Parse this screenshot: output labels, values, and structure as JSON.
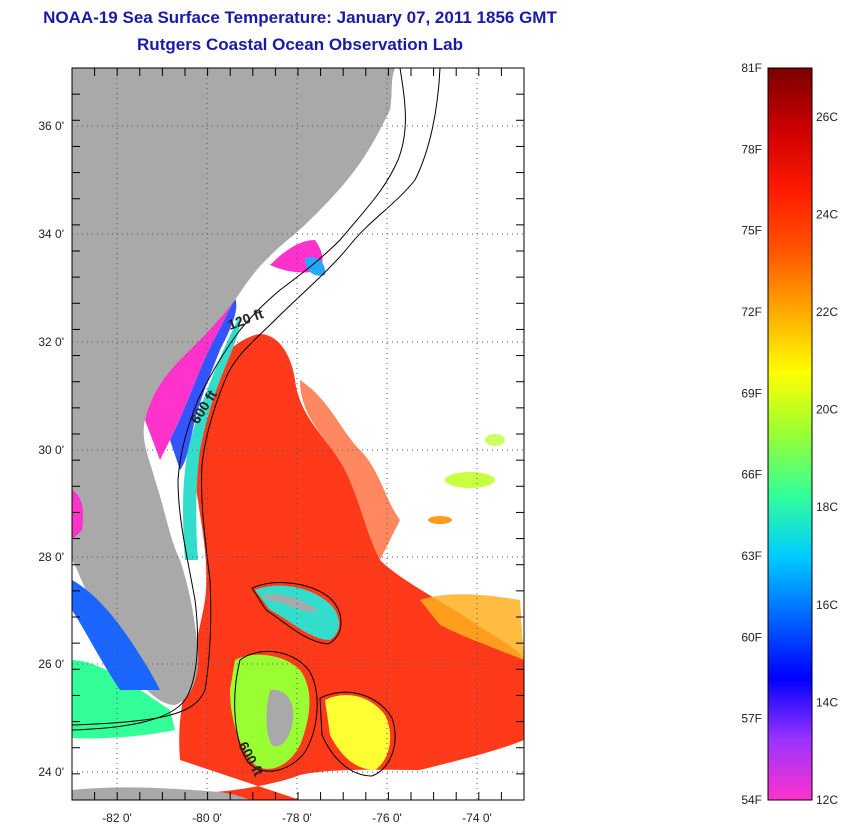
{
  "title": "NOAA-19 Sea Surface Temperature:  January 07, 2011 1856 GMT",
  "subtitle": "Rutgers Coastal Ocean Observation Lab",
  "map": {
    "lon_range": [
      -83.0,
      -72.9
    ],
    "lat_range": [
      23.0,
      37.0
    ],
    "lon_ticks": [
      "-82 0'",
      "-80 0'",
      "-78 0'",
      "-76 0'",
      "-74 0'"
    ],
    "lat_ticks": [
      "36 0'",
      "34 0'",
      "32 0'",
      "30 0'",
      "28 0'",
      "26 0'",
      "24 0'"
    ],
    "contour_labels": [
      "120 ft",
      "600 ft",
      "600 ft"
    ],
    "colors": {
      "land": "#a9a9a9",
      "cloud": "#ffffff",
      "gulf_stream": "#ff3a1a",
      "cold_shelf": "#ff33cc"
    }
  },
  "colorbar": {
    "f_labels": [
      "81F",
      "78F",
      "75F",
      "72F",
      "69F",
      "66F",
      "63F",
      "60F",
      "57F",
      "54F"
    ],
    "c_labels": [
      "26C",
      "24C",
      "22C",
      "20C",
      "18C",
      "16C",
      "14C",
      "12C"
    ],
    "range_c": [
      12,
      27
    ],
    "colors": [
      "#ff33cc",
      "#9933ff",
      "#0000ff",
      "#0066ff",
      "#00ccff",
      "#33ff99",
      "#99ff33",
      "#ffff00",
      "#ffaa00",
      "#ff5500",
      "#ff1a00",
      "#cc0000",
      "#7a0000"
    ]
  }
}
